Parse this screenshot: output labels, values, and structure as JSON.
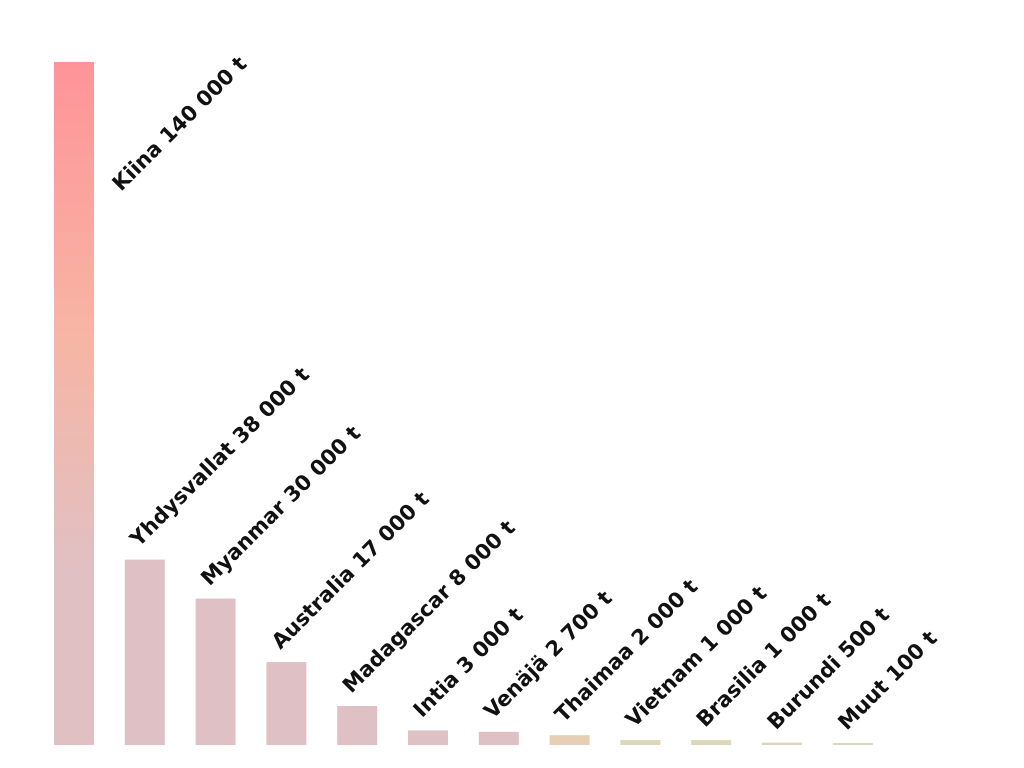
{
  "chart_data": {
    "type": "bar",
    "title": "",
    "xlabel": "",
    "ylabel": "",
    "unit": "t",
    "ylim": [
      0,
      140000
    ],
    "grid": false,
    "legend": "none",
    "categories": [
      "Kiina",
      "Yhdysvallat",
      "Myanmar",
      "Australia",
      "Madagascar",
      "Intia",
      "Venäjä",
      "Thaimaa",
      "Vietnam",
      "Brasilia",
      "Burundi",
      "Muut"
    ],
    "values": [
      140000,
      38000,
      30000,
      17000,
      8000,
      3000,
      2700,
      2000,
      1000,
      1000,
      500,
      100
    ],
    "labels": [
      "Kiina 140 000 t",
      "Yhdysvallat 38 000 t",
      "Myanmar 30 000 t",
      "Australia 17 000 t",
      "Madagascar 8 000 t",
      "Intia 3 000 t",
      "Venäjä 2 700 t",
      "Thaimaa 2 000 t",
      "Vietnam 1 000 t",
      "Brasilia 1 000 t",
      "Burundi 500 t",
      "Muut 100 t"
    ],
    "colors": {
      "bar_gradient_top": "#ff9498",
      "bar_gradient_mid": "#f7b5a4",
      "bar_gradient_low": "#e0c0c3",
      "bar_pink": "#dfc0c4",
      "bar_tan": "#e6cfb4",
      "bar_khaki": "#ddd6b8",
      "label_text": "#111111"
    }
  }
}
